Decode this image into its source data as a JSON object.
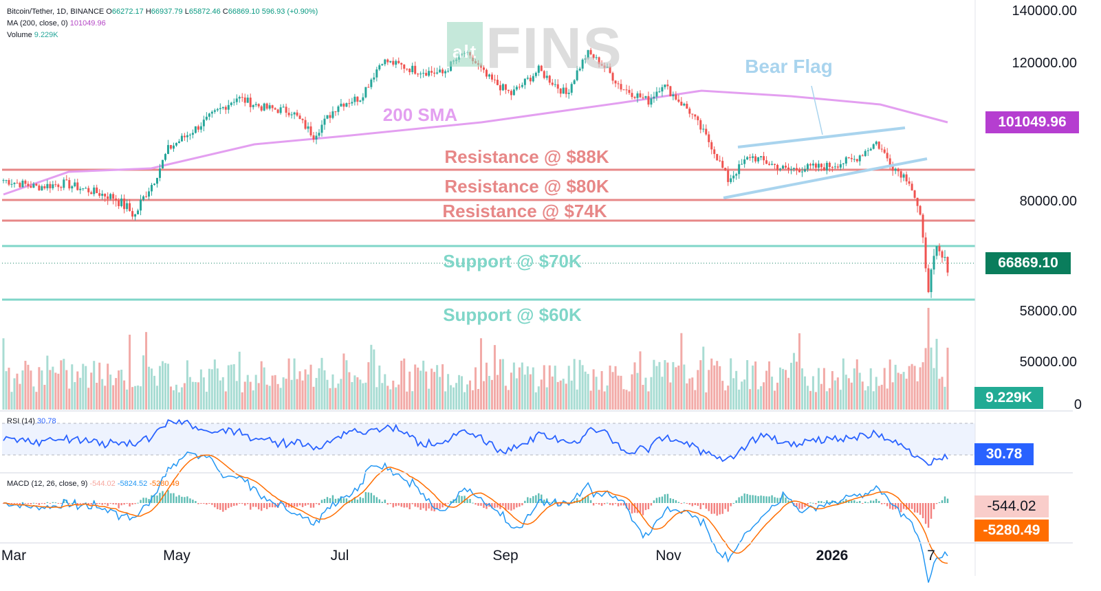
{
  "header": {
    "symbol": "Bitcoin/Tether, 1D, BINANCE",
    "o_label": "O",
    "o": "66272.17",
    "h_label": "H",
    "h": "66937.79",
    "l_label": "L",
    "l": "65872.46",
    "c_label": "C",
    "c": "66869.10",
    "change": "596.93 (+0.90%)",
    "ma_label": "MA (200, close, 0)",
    "ma_value": "101049.96",
    "vol_label": "Volume",
    "vol_value": "9.229K"
  },
  "watermark": {
    "small": "alt",
    "big": "FINS"
  },
  "price_axis": [
    "140000.00",
    "120000.00",
    "80000.00",
    "58000.00",
    "50000.00",
    "0"
  ],
  "tags": {
    "ma": "101049.96",
    "last": "66869.10",
    "volume": "9.229K",
    "rsi": "30.78",
    "macd_hist": "-544.02",
    "macd_signal": "-5280.49"
  },
  "time_axis": [
    "Mar",
    "May",
    "Jul",
    "Sep",
    "Nov",
    "2026",
    "7"
  ],
  "annotations": {
    "bear_flag": "Bear Flag",
    "sma": "200 SMA",
    "r88": "Resistance @ $88K",
    "r80": "Resistance @ $80K",
    "r74": "Resistance @ $74K",
    "s70": "Support @ $70K",
    "s60": "Support @ $60K"
  },
  "rsi": {
    "label": "RSI (14)",
    "value": "30.78"
  },
  "macd": {
    "label": "MACD (12, 26, close, 9)",
    "hist": "-544.02",
    "macd": "-5824.52",
    "signal": "-5280.49"
  },
  "colors": {
    "up": "#26a69a",
    "down": "#ef5350",
    "ma": "#e39ff0",
    "resistance": "#e78787",
    "support": "#7fd6c8",
    "flag": "#a9d4ee",
    "rsi": "#2962ff",
    "macd": "#2196f3",
    "signal": "#ff6d00"
  },
  "chart_data": {
    "type": "line",
    "title": "Bitcoin/Tether, 1D, BINANCE",
    "x": [
      "Mar",
      "May",
      "Jul",
      "Sep",
      "Nov",
      "2026",
      "7"
    ],
    "series": [
      {
        "name": "Bitcoin/Tether",
        "values": [
          86000,
          94000,
          108000,
          110000,
          110000,
          88000,
          66869
        ]
      },
      {
        "name": "MA (200, close, 0)",
        "values": [
          80000,
          88000,
          97000,
          102000,
          110000,
          106000,
          101050
        ]
      }
    ],
    "levels": {
      "resistance": [
        88000,
        80000,
        74000
      ],
      "support": [
        70000,
        60000
      ]
    },
    "last": {
      "open": 66272.17,
      "high": 66937.79,
      "low": 65872.46,
      "close": 66869.1
    },
    "ma200": 101049.96,
    "volume": 9229,
    "rsi": 30.78,
    "macd": {
      "histogram": -544.02,
      "macd": -5824.52,
      "signal": -5280.49
    },
    "price_ticks": [
      140000,
      120000,
      80000,
      58000,
      50000
    ],
    "grid": true,
    "legend_position": "top-left"
  }
}
